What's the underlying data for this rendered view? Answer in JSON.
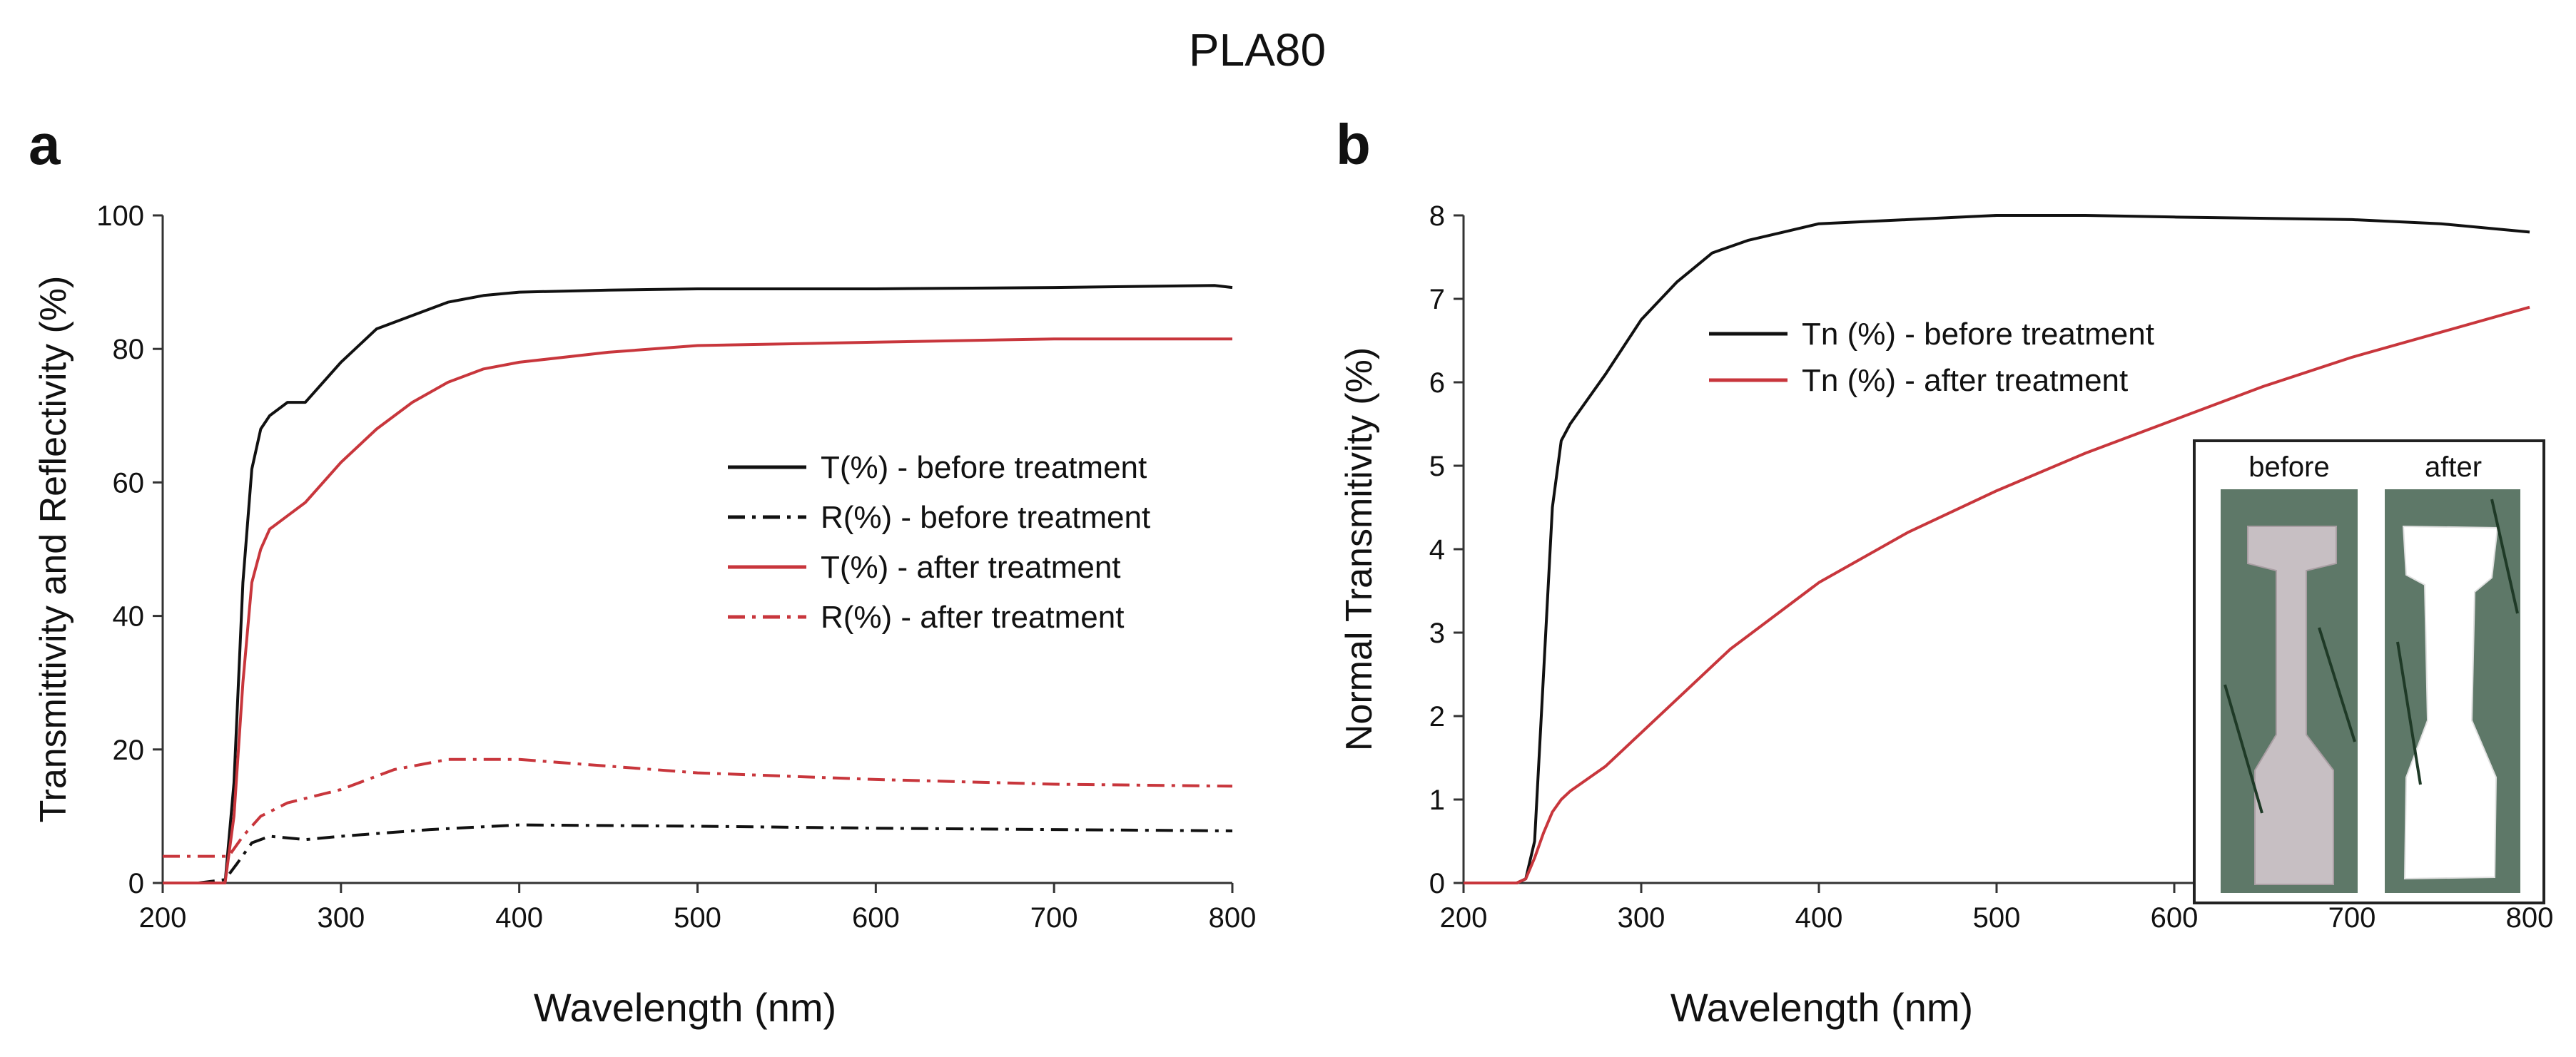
{
  "figure": {
    "title": "PLA80"
  },
  "colors": {
    "black": "#111111",
    "red": "#c8363c",
    "axis": "#333333"
  },
  "chart_data": [
    {
      "panel": "a",
      "type": "line",
      "xlabel": "Wavelength (nm)",
      "ylabel": "Transmittivity and Reflectivity (%)",
      "xlim": [
        200,
        800
      ],
      "ylim": [
        0,
        100
      ],
      "xticks": [
        200,
        300,
        400,
        500,
        600,
        700,
        800
      ],
      "yticks": [
        0,
        20,
        40,
        60,
        80,
        100
      ],
      "legend_position": "center-right",
      "series": [
        {
          "name": "T(%) - before treatment",
          "color": "#111111",
          "dash": "solid",
          "x": [
            200,
            225,
            235,
            240,
            245,
            250,
            255,
            260,
            270,
            280,
            300,
            320,
            340,
            360,
            380,
            400,
            450,
            500,
            600,
            700,
            790,
            800
          ],
          "y": [
            0,
            0,
            0,
            15,
            45,
            62,
            68,
            70,
            72,
            72,
            78,
            83,
            85,
            87,
            88,
            88.5,
            88.8,
            89,
            89,
            89.2,
            89.5,
            89.2
          ]
        },
        {
          "name": "R(%) - before treatment",
          "color": "#111111",
          "dash": "dashdot",
          "x": [
            200,
            220,
            235,
            242,
            250,
            260,
            280,
            300,
            350,
            400,
            500,
            600,
            700,
            800
          ],
          "y": [
            0,
            0,
            0.5,
            3,
            6,
            7,
            6.5,
            7,
            8,
            8.7,
            8.5,
            8.2,
            8,
            7.8
          ]
        },
        {
          "name": "T(%) - after treatment",
          "color": "#c8363c",
          "dash": "solid",
          "x": [
            200,
            225,
            235,
            240,
            245,
            250,
            255,
            260,
            270,
            280,
            300,
            320,
            340,
            360,
            380,
            400,
            450,
            500,
            600,
            700,
            800
          ],
          "y": [
            0,
            0,
            0,
            10,
            30,
            45,
            50,
            53,
            55,
            57,
            63,
            68,
            72,
            75,
            77,
            78,
            79.5,
            80.5,
            81,
            81.5,
            81.5
          ]
        },
        {
          "name": "R(%) - after treatment",
          "color": "#c8363c",
          "dash": "dashdot",
          "x": [
            200,
            230,
            237,
            245,
            255,
            270,
            300,
            330,
            360,
            400,
            450,
            500,
            600,
            700,
            800
          ],
          "y": [
            4,
            4,
            4,
            7,
            10,
            12,
            14,
            17,
            18.5,
            18.5,
            17.5,
            16.5,
            15.5,
            14.8,
            14.5
          ]
        }
      ]
    },
    {
      "panel": "b",
      "type": "line",
      "xlabel": "Wavelength (nm)",
      "ylabel": "Normal Transmitivity (%)",
      "xlim": [
        200,
        800
      ],
      "ylim": [
        0,
        8
      ],
      "xticks": [
        200,
        300,
        400,
        500,
        600,
        700,
        800
      ],
      "yticks": [
        0,
        1,
        2,
        3,
        4,
        5,
        6,
        7,
        8
      ],
      "legend_position": "upper-center",
      "series": [
        {
          "name": "Tn (%) - before treatment",
          "color": "#111111",
          "dash": "solid",
          "x": [
            200,
            230,
            235,
            240,
            245,
            250,
            255,
            260,
            270,
            280,
            300,
            320,
            340,
            360,
            380,
            400,
            450,
            500,
            550,
            600,
            700,
            750,
            800
          ],
          "y": [
            0,
            0,
            0.05,
            0.5,
            2.5,
            4.5,
            5.3,
            5.5,
            5.8,
            6.1,
            6.75,
            7.2,
            7.55,
            7.7,
            7.8,
            7.9,
            7.95,
            8,
            8,
            7.98,
            7.95,
            7.9,
            7.8
          ]
        },
        {
          "name": "Tn (%) - after treatment",
          "color": "#c8363c",
          "dash": "solid",
          "x": [
            200,
            230,
            235,
            240,
            245,
            250,
            255,
            260,
            280,
            300,
            350,
            400,
            450,
            500,
            550,
            600,
            650,
            700,
            750,
            800
          ],
          "y": [
            0,
            0,
            0.05,
            0.3,
            0.6,
            0.85,
            1.0,
            1.1,
            1.4,
            1.8,
            2.8,
            3.6,
            4.2,
            4.7,
            5.15,
            5.55,
            5.95,
            6.3,
            6.6,
            6.9
          ]
        }
      ],
      "inset": {
        "labels": [
          "before",
          "after"
        ]
      }
    }
  ]
}
